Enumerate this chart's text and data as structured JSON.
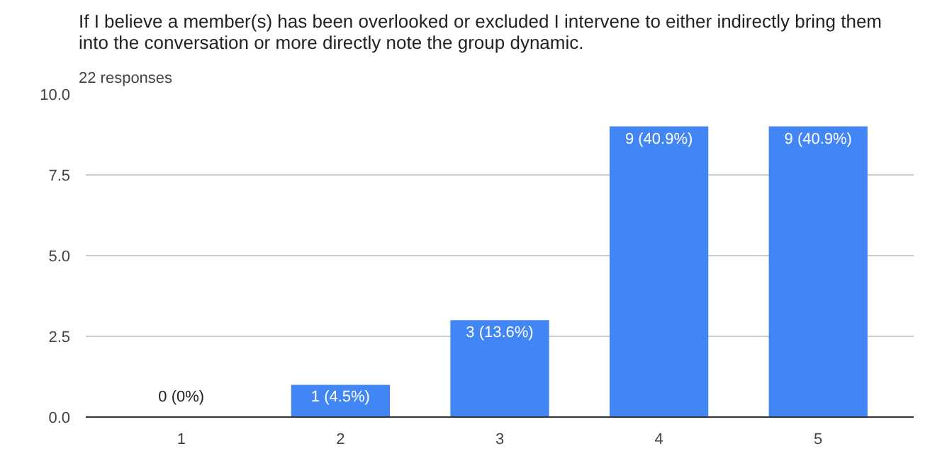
{
  "chart_data": {
    "type": "bar",
    "title": "If I believe a member(s) has been overlooked or excluded I intervene to either indirectly bring them into the conversation or more directly note the group dynamic.",
    "subtitle": "22 responses",
    "categories": [
      "1",
      "2",
      "3",
      "4",
      "5"
    ],
    "values": [
      0,
      1,
      3,
      9,
      9
    ],
    "value_labels": [
      "0 (0%)",
      "1 (4.5%)",
      "3 (13.6%)",
      "9 (40.9%)",
      "9 (40.9%)"
    ],
    "color": "#4285f4",
    "ylim": [
      0,
      10
    ],
    "yticks": [
      {
        "value": 0,
        "label": "0.0"
      },
      {
        "value": 2.5,
        "label": "2.5"
      },
      {
        "value": 5,
        "label": "5.0"
      },
      {
        "value": 7.5,
        "label": "7.5"
      },
      {
        "value": 10,
        "label": "10.0"
      }
    ],
    "grid": "y"
  }
}
